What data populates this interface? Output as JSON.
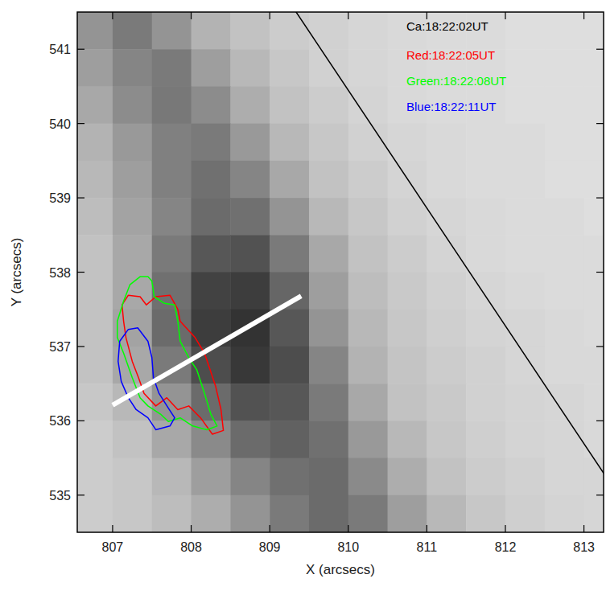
{
  "chart_data": {
    "type": "heatmap",
    "image_label": "Ca:18:22:02UT",
    "x_label": "X (arcsecs)",
    "y_label": "Y (arcsecs)",
    "xlim": [
      806.55,
      813.25
    ],
    "ylim": [
      534.5,
      541.5
    ],
    "xticks": [
      807,
      808,
      809,
      810,
      811,
      812,
      813
    ],
    "yticks": [
      535,
      536,
      537,
      538,
      539,
      540,
      541
    ],
    "cells": {
      "x_edges": [
        806.5,
        807,
        807.5,
        808,
        808.5,
        809,
        809.5,
        810,
        810.5,
        811,
        811.5,
        812,
        812.5,
        813,
        813.5
      ],
      "y_edges": [
        541.5,
        541,
        540.5,
        540,
        539.5,
        539,
        538.5,
        538,
        537.5,
        537,
        536.5,
        536,
        535.5,
        535,
        534.5
      ],
      "values": [
        [
          58,
          48,
          58,
          70,
          76,
          80,
          82,
          84,
          85,
          86,
          86,
          87,
          87,
          87
        ],
        [
          62,
          52,
          48,
          62,
          72,
          78,
          82,
          84,
          85,
          86,
          86,
          87,
          87,
          87
        ],
        [
          66,
          55,
          47,
          55,
          68,
          76,
          80,
          83,
          85,
          86,
          86,
          87,
          87,
          87
        ],
        [
          70,
          60,
          50,
          48,
          60,
          72,
          78,
          82,
          84,
          85,
          86,
          86,
          87,
          87
        ],
        [
          72,
          62,
          50,
          44,
          52,
          66,
          76,
          80,
          83,
          85,
          86,
          86,
          87,
          87
        ],
        [
          74,
          64,
          52,
          42,
          44,
          58,
          72,
          78,
          82,
          84,
          85,
          86,
          86,
          87
        ],
        [
          76,
          66,
          48,
          34,
          32,
          48,
          66,
          76,
          80,
          83,
          85,
          86,
          86,
          86
        ],
        [
          76,
          66,
          44,
          26,
          24,
          40,
          62,
          74,
          79,
          82,
          84,
          85,
          86,
          86
        ],
        [
          76,
          64,
          42,
          24,
          20,
          34,
          58,
          72,
          78,
          81,
          83,
          84,
          85,
          86
        ],
        [
          76,
          66,
          48,
          30,
          22,
          30,
          52,
          70,
          77,
          80,
          82,
          84,
          85,
          85
        ],
        [
          78,
          72,
          58,
          42,
          32,
          34,
          48,
          66,
          76,
          79,
          82,
          83,
          84,
          85
        ],
        [
          80,
          76,
          66,
          54,
          42,
          38,
          44,
          60,
          72,
          78,
          81,
          83,
          84,
          85
        ],
        [
          80,
          78,
          72,
          62,
          52,
          44,
          42,
          54,
          68,
          76,
          80,
          82,
          84,
          84
        ],
        [
          80,
          78,
          74,
          68,
          58,
          48,
          42,
          48,
          62,
          72,
          78,
          81,
          83,
          84
        ]
      ],
      "vlim": [
        0,
        100
      ]
    },
    "series": [
      {
        "name": "Red:18:22:05UT",
        "color": "#ff0000",
        "type": "contour",
        "x": [
          807.12,
          807.2,
          807.35,
          807.43,
          807.55,
          807.73,
          807.83,
          807.86,
          808.05,
          808.17,
          808.24,
          808.31,
          808.38,
          808.41,
          808.27,
          808.12,
          807.97,
          807.83,
          807.69,
          807.55,
          807.4,
          807.33,
          807.25,
          807.17,
          807.14
        ],
        "y": [
          537.56,
          537.69,
          537.67,
          537.56,
          537.67,
          537.69,
          537.5,
          537.34,
          537.12,
          536.91,
          536.69,
          536.47,
          536.15,
          535.87,
          535.82,
          536.04,
          536.2,
          536.15,
          536.31,
          536.2,
          536.37,
          536.58,
          536.8,
          537.12,
          537.34
        ]
      },
      {
        "name": "Green:18:22:08UT",
        "color": "#00ff00",
        "type": "contour",
        "x": [
          807.45,
          807.5,
          807.53,
          807.66,
          807.79,
          807.83,
          807.86,
          807.97,
          808.07,
          808.17,
          808.25,
          808.33,
          808.2,
          808.02,
          807.86,
          807.71,
          807.61,
          807.45,
          807.35,
          807.25,
          807.14,
          807.06,
          807.06,
          807.14,
          807.22,
          807.35
        ],
        "y": [
          537.94,
          537.88,
          537.67,
          537.58,
          537.56,
          537.34,
          537.07,
          536.85,
          536.69,
          536.37,
          536.09,
          535.93,
          535.88,
          535.93,
          536.04,
          535.99,
          536.09,
          536.2,
          536.31,
          536.58,
          536.91,
          537.12,
          537.34,
          537.61,
          537.83,
          537.94
        ]
      },
      {
        "name": "Blue:18:22:11UT",
        "color": "#0000ff",
        "type": "contour",
        "x": [
          807.09,
          807.2,
          807.32,
          807.45,
          807.5,
          807.52,
          807.59,
          807.71,
          807.79,
          807.73,
          807.55,
          807.45,
          807.3,
          807.2,
          807.11,
          807.07
        ],
        "y": [
          537.07,
          537.23,
          537.25,
          537.07,
          536.85,
          536.58,
          536.37,
          536.17,
          536.04,
          535.93,
          535.88,
          536.04,
          536.15,
          536.31,
          536.53,
          536.8
        ]
      }
    ],
    "lines": [
      {
        "color": "#000000",
        "x": [
          809.33,
          813.26
        ],
        "y": [
          541.51,
          535.28
        ]
      },
      {
        "color": "#ffffff",
        "x": [
          807.0,
          809.4
        ],
        "y": [
          536.21,
          537.68
        ]
      }
    ]
  }
}
